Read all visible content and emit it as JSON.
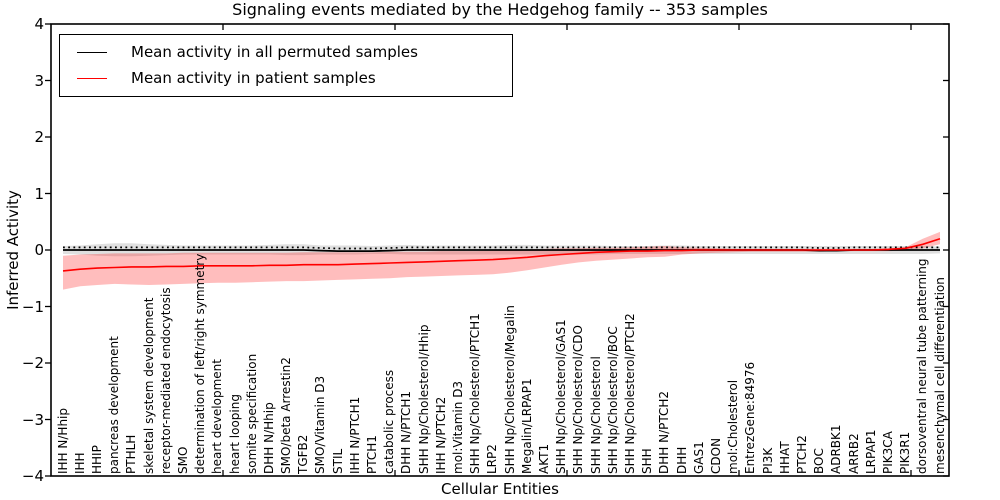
{
  "title": "Signaling events mediated by the Hedgehog family -- 353 samples",
  "axes": {
    "ylabel": "Inferred Activity",
    "xlabel": "Cellular Entities",
    "yticks": [
      "4",
      "3",
      "2",
      "1",
      "0",
      "−1",
      "−2",
      "−3",
      "−4"
    ],
    "ylim": [
      -4,
      4
    ]
  },
  "legend": {
    "entries": [
      {
        "label": "Mean activity in all permuted samples",
        "color": "#000000"
      },
      {
        "label": "Mean activity in patient samples",
        "color": "#ff0000"
      }
    ]
  },
  "colors": {
    "patient_line": "#ff0000",
    "permuted_line": "#000000",
    "patient_band": "rgba(255,0,0,0.26)",
    "permuted_band": "rgba(110,110,110,0.22)",
    "axis": "#000000"
  },
  "chart_data": {
    "type": "line",
    "title": "Signaling events mediated by the Hedgehog family -- 353 samples",
    "xlabel": "Cellular Entities",
    "ylabel": "Inferred Activity",
    "ylim": [
      -4,
      4
    ],
    "grid": false,
    "legend_position": "upper left",
    "categories": [
      "IHH N/Hhip",
      "IHH",
      "HHIP",
      "pancreas development",
      "PTHLH",
      "skeletal system development",
      "receptor-mediated endocytosis",
      "SMO",
      "determination of left/right symmetry",
      "heart development",
      "heart looping",
      "somite specification",
      "DHH N/Hhip",
      "SMO/beta Arrestin2",
      "TGFB2",
      "SMO/Vitamin D3",
      "STIL",
      "IHH N/PTCH1",
      "PTCH1",
      "catabolic process",
      "DHH N/PTCH1",
      "SHH Np/Cholesterol/Hhip",
      "IHH N/PTCH2",
      "mol:Vitamin D3",
      "SHH Np/Cholesterol/PTCH1",
      "LRP2",
      "SHH Np/Cholesterol/Megalin",
      "Megalin/LRPAP1",
      "AKT1",
      "SHH Np/Cholesterol/GAS1",
      "SHH Np/Cholesterol/CDO",
      "SHH Np/Cholesterol",
      "SHH Np/Cholesterol/BOC",
      "SHH Np/Cholesterol/PTCH2",
      "SHH",
      "DHH N/PTCH2",
      "DHH",
      "GAS1",
      "CDON",
      "mol:Cholesterol",
      "EntrezGene:84976",
      "PI3K",
      "HHAT",
      "PTCH2",
      "BOC",
      "ADRBK1",
      "ARRB2",
      "LRPAP1",
      "PIK3CA",
      "PIK3R1",
      "dorsoventral neural tube patterning",
      "mesenchymal cell differentiation"
    ],
    "series": [
      {
        "name": "Mean activity in all permuted samples",
        "color": "#000000",
        "style": "solid-with-dotted-overlay",
        "values": [
          0,
          0,
          0,
          0,
          0,
          0,
          0,
          0,
          0,
          0,
          0,
          0,
          0,
          0,
          0,
          -0.01,
          -0.02,
          -0.02,
          -0.02,
          -0.01,
          0,
          0,
          0,
          0,
          0,
          0,
          0,
          0,
          0,
          0,
          0,
          0,
          0,
          0,
          0,
          0,
          0,
          0,
          0,
          0,
          0,
          0,
          0,
          0,
          -0.01,
          -0.01,
          0,
          0,
          0,
          0,
          0,
          0
        ]
      },
      {
        "name": "Mean activity in patient samples",
        "color": "#ff0000",
        "style": "solid",
        "values": [
          -0.37,
          -0.34,
          -0.32,
          -0.31,
          -0.3,
          -0.3,
          -0.29,
          -0.29,
          -0.28,
          -0.28,
          -0.28,
          -0.28,
          -0.27,
          -0.27,
          -0.26,
          -0.26,
          -0.26,
          -0.25,
          -0.24,
          -0.23,
          -0.22,
          -0.21,
          -0.2,
          -0.19,
          -0.18,
          -0.17,
          -0.15,
          -0.13,
          -0.1,
          -0.08,
          -0.06,
          -0.04,
          -0.03,
          -0.02,
          -0.02,
          -0.01,
          -0.01,
          0,
          0,
          0,
          0,
          0,
          0,
          0,
          0,
          0,
          0,
          0,
          0.01,
          0.03,
          0.1,
          0.2
        ]
      }
    ],
    "bands": [
      {
        "name": "permuted-samples-range",
        "color": "rgba(110,110,110,0.22)",
        "upper": [
          0.07,
          0.08,
          0.1,
          0.12,
          0.12,
          0.1,
          0.09,
          0.08,
          0.08,
          0.08,
          0.08,
          0.08,
          0.09,
          0.1,
          0.1,
          0.08,
          0.08,
          0.08,
          0.07,
          0.08,
          0.09,
          0.08,
          0.08,
          0.08,
          0.08,
          0.08,
          0.09,
          0.09,
          0.08,
          0.08,
          0.08,
          0.08,
          0.07,
          0.07,
          0.07,
          0.08,
          0.08,
          0.07,
          0.07,
          0.07,
          0.07,
          0.07,
          0.07,
          0.07,
          0.07,
          0.07,
          0.07,
          0.07,
          0.07,
          0.07,
          0.07,
          0.06
        ],
        "lower": [
          -0.07,
          -0.08,
          -0.1,
          -0.11,
          -0.11,
          -0.1,
          -0.09,
          -0.08,
          -0.08,
          -0.08,
          -0.08,
          -0.08,
          -0.08,
          -0.09,
          -0.09,
          -0.08,
          -0.08,
          -0.08,
          -0.07,
          -0.07,
          -0.08,
          -0.08,
          -0.08,
          -0.08,
          -0.08,
          -0.08,
          -0.08,
          -0.08,
          -0.08,
          -0.08,
          -0.08,
          -0.08,
          -0.07,
          -0.07,
          -0.07,
          -0.07,
          -0.07,
          -0.07,
          -0.07,
          -0.07,
          -0.07,
          -0.07,
          -0.07,
          -0.07,
          -0.07,
          -0.07,
          -0.07,
          -0.07,
          -0.07,
          -0.07,
          -0.07,
          -0.06
        ]
      },
      {
        "name": "patient-samples-range",
        "color": "rgba(255,0,0,0.26)",
        "upper": [
          -0.1,
          -0.08,
          -0.07,
          -0.06,
          -0.06,
          -0.06,
          -0.06,
          -0.05,
          -0.05,
          -0.05,
          -0.05,
          -0.05,
          -0.05,
          -0.05,
          -0.04,
          -0.04,
          -0.04,
          -0.04,
          -0.04,
          -0.03,
          -0.03,
          -0.03,
          -0.02,
          -0.02,
          -0.02,
          -0.01,
          0.0,
          0.01,
          0.02,
          0.03,
          0.03,
          0.04,
          0.04,
          0.05,
          0.06,
          0.07,
          0.05,
          0.04,
          0.03,
          0.02,
          0.02,
          0.02,
          0.02,
          0.02,
          0.02,
          0.02,
          0.02,
          0.02,
          0.03,
          0.05,
          0.2,
          0.32
        ],
        "lower": [
          -0.7,
          -0.64,
          -0.62,
          -0.6,
          -0.61,
          -0.62,
          -0.61,
          -0.6,
          -0.59,
          -0.58,
          -0.58,
          -0.57,
          -0.56,
          -0.55,
          -0.55,
          -0.54,
          -0.53,
          -0.52,
          -0.51,
          -0.5,
          -0.48,
          -0.47,
          -0.46,
          -0.45,
          -0.44,
          -0.43,
          -0.4,
          -0.36,
          -0.31,
          -0.26,
          -0.22,
          -0.19,
          -0.17,
          -0.15,
          -0.13,
          -0.12,
          -0.08,
          -0.06,
          -0.05,
          -0.04,
          -0.03,
          -0.03,
          -0.03,
          -0.03,
          -0.03,
          -0.02,
          -0.02,
          -0.02,
          -0.02,
          -0.01,
          0.03,
          0.1
        ]
      }
    ]
  }
}
